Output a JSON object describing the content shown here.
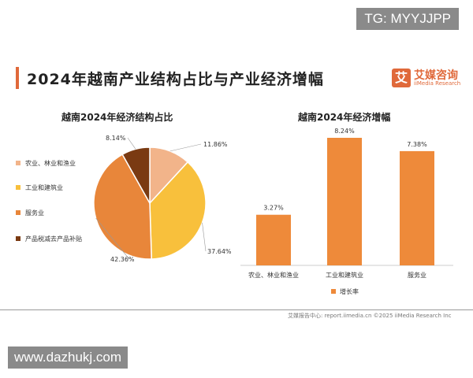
{
  "watermark_top": "TG: MYYJJPP",
  "watermark_bottom": "www.dazhukj.com",
  "header": {
    "title": "2024年越南产业结构占比与产业经济增幅",
    "logo_glyph": "艾",
    "logo_cn": "艾媒咨询",
    "logo_en": "iiMedia Research"
  },
  "footer": "艾媒报告中心: report.iimedia.cn   ©2025   iiMedia Research Inc",
  "chart_data": [
    {
      "type": "pie",
      "title": "越南2024年经济结构占比",
      "categories": [
        "农业、林业和渔业",
        "工业和建筑业",
        "服务业",
        "产品税减去产品补贴"
      ],
      "values": [
        11.86,
        37.64,
        42.36,
        8.14
      ],
      "labels": [
        "11.86%",
        "37.64%",
        "42.36%",
        "8.14%"
      ],
      "colors": [
        "#f2b48a",
        "#f8c03c",
        "#e8863a",
        "#7a3a12"
      ],
      "legend_position": "left"
    },
    {
      "type": "bar",
      "title": "越南2024年经济增幅",
      "categories": [
        "农业、林业和渔业",
        "工业和建筑业",
        "服务业"
      ],
      "series": [
        {
          "name": "增长率",
          "values": [
            3.27,
            8.24,
            7.38
          ],
          "labels": [
            "3.27%",
            "8.24%",
            "7.38%"
          ],
          "color": "#ee8a3a"
        }
      ],
      "ylim": [
        0,
        8.24
      ],
      "grid": false,
      "legend_position": "bottom"
    }
  ]
}
